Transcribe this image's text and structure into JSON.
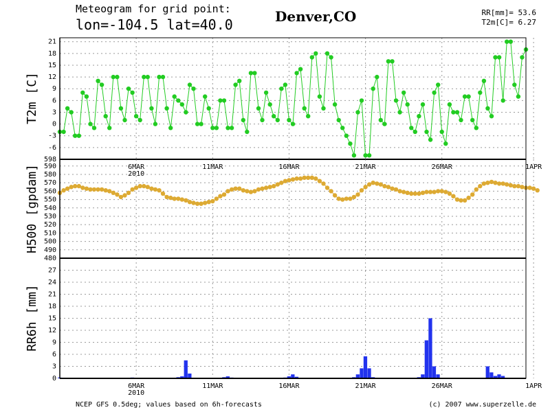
{
  "header": {
    "title_line1": "Meteogram for grid point:",
    "title_line2": "lon=-104.5 lat=40.0",
    "city": "Denver,CO",
    "stat_rr": "RR[mm]= 53.6",
    "stat_t2m": "T2m[C]= 6.27"
  },
  "footer": {
    "source": "NCEP GFS 0.5deg; values based on 6h-forecasts",
    "copyright": "(c) 2007 www.superzelle.de"
  },
  "chart_data": [
    {
      "type": "line",
      "ylabel": "T2m [C]",
      "ylim": [
        -9,
        22
      ],
      "yticks": [
        -6,
        -3,
        0,
        3,
        6,
        9,
        12,
        15,
        18,
        21
      ],
      "grid": true,
      "color": "#22cc22",
      "x_day_start": "2010-03-01",
      "x_step_hours": 6,
      "xticks": [
        {
          "label": "6MAR",
          "sub": "2010"
        },
        {
          "label": "11MAR",
          "sub": ""
        },
        {
          "label": "16MAR",
          "sub": ""
        },
        {
          "label": "21MAR",
          "sub": ""
        },
        {
          "label": "26MAR",
          "sub": ""
        },
        {
          "label": "1APR",
          "sub": ""
        }
      ],
      "values": [
        -2,
        -2,
        4,
        3,
        -3,
        -3,
        8,
        7,
        0,
        -1,
        11,
        10,
        2,
        -1,
        12,
        12,
        4,
        1,
        9,
        8,
        2,
        1,
        12,
        12,
        4,
        0,
        12,
        12,
        4,
        -1,
        7,
        6,
        5,
        3,
        10,
        9,
        0,
        0,
        7,
        4,
        -1,
        -1,
        6,
        6,
        -1,
        -1,
        10,
        11,
        1,
        -2,
        13,
        13,
        4,
        1,
        8,
        5,
        2,
        1,
        9,
        10,
        1,
        0,
        13,
        14,
        4,
        2,
        17,
        18,
        7,
        4,
        18,
        17,
        5,
        1,
        -1,
        -3,
        -5,
        -8,
        3,
        6,
        -8,
        -8,
        9,
        12,
        1,
        0,
        16,
        16,
        6,
        3,
        8,
        5,
        -1,
        -2,
        2,
        5,
        -2,
        -4,
        8,
        10,
        -2,
        -5,
        5,
        3,
        3,
        1,
        7,
        7,
        1,
        -1,
        8,
        11,
        4,
        2,
        17,
        17,
        6,
        21,
        21,
        10,
        7,
        17,
        19
      ]
    },
    {
      "type": "line",
      "ylabel": "H500 [gpdam]",
      "ylim": [
        480,
        598
      ],
      "yticks": [
        480,
        490,
        500,
        510,
        520,
        530,
        540,
        550,
        560,
        570,
        580,
        590,
        598
      ],
      "grid": true,
      "color": "#ddaa33",
      "values": [
        558,
        561,
        563,
        565,
        566,
        566,
        564,
        563,
        562,
        562,
        562,
        562,
        561,
        560,
        558,
        556,
        553,
        555,
        558,
        562,
        564,
        566,
        566,
        565,
        563,
        562,
        561,
        557,
        553,
        552,
        551,
        551,
        550,
        549,
        547,
        546,
        545,
        545,
        546,
        547,
        548,
        551,
        554,
        556,
        560,
        562,
        563,
        563,
        561,
        560,
        559,
        560,
        562,
        563,
        564,
        565,
        566,
        568,
        570,
        572,
        573,
        574,
        575,
        575,
        576,
        576,
        576,
        575,
        572,
        569,
        564,
        560,
        555,
        551,
        550,
        551,
        551,
        553,
        556,
        561,
        565,
        568,
        570,
        569,
        568,
        566,
        565,
        563,
        562,
        560,
        559,
        558,
        557,
        557,
        557,
        558,
        559,
        559,
        559,
        560,
        560,
        559,
        557,
        554,
        550,
        549,
        549,
        552,
        556,
        562,
        566,
        569,
        570,
        571,
        570,
        569,
        569,
        568,
        567,
        566,
        566,
        565,
        564,
        564,
        563,
        561
      ]
    },
    {
      "type": "bar",
      "ylabel": "RR6h [mm]",
      "ylim": [
        0,
        30
      ],
      "yticks": [
        0,
        3,
        6,
        9,
        12,
        15,
        18,
        21,
        24,
        27
      ],
      "grid": true,
      "color": "#2233ee",
      "values": [
        0.2,
        0,
        0,
        0,
        0,
        0,
        0,
        0,
        0,
        0,
        0,
        0,
        0,
        0,
        0,
        0,
        0,
        0,
        0.1,
        0.2,
        0.1,
        0,
        0,
        0,
        0,
        0,
        0,
        0,
        0,
        0,
        0,
        0.3,
        0.5,
        4.5,
        1.2,
        0.1,
        0,
        0,
        0,
        0,
        0,
        0,
        0,
        0.3,
        0.5,
        0.2,
        0,
        0,
        0,
        0,
        0,
        0,
        0,
        0,
        0,
        0,
        0,
        0,
        0,
        0.2,
        0.5,
        1,
        0.4,
        0,
        0,
        0,
        0,
        0,
        0,
        0,
        0,
        0,
        0,
        0,
        0,
        0,
        0,
        0.3,
        1,
        2.5,
        5.5,
        2.5,
        0.3,
        0,
        0,
        0,
        0,
        0,
        0,
        0,
        0,
        0,
        0,
        0,
        0.3,
        1,
        9.5,
        15,
        3,
        1,
        0,
        0,
        0,
        0,
        0,
        0,
        0,
        0,
        0,
        0,
        0,
        0,
        3,
        1.5,
        0.6,
        1,
        0.6,
        0,
        0,
        0,
        0,
        0,
        0,
        0,
        0,
        0,
        0,
        0,
        0,
        0,
        0,
        0,
        0.3
      ]
    }
  ]
}
